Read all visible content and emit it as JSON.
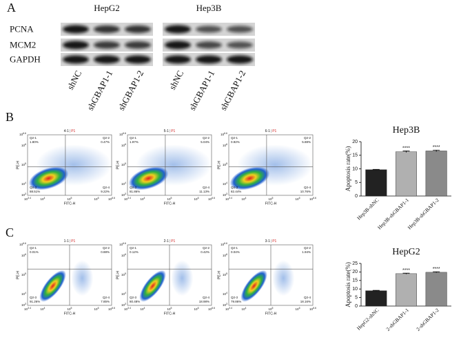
{
  "panel_a": {
    "label": "A",
    "proteins": [
      "PCNA",
      "MCM2",
      "GAPDH"
    ],
    "blots": [
      {
        "title": "HepG2",
        "lanes": [
          "shNC",
          "shGBAP1-1",
          "shGBAP1-2"
        ]
      },
      {
        "title": "Hep3B",
        "lanes": [
          "shNC",
          "shGBAP1-1",
          "shGBAP1-2"
        ]
      }
    ]
  },
  "flow_axes": {
    "base": "10",
    "x_exponents": [
      "3.4",
      "4",
      "5",
      "6",
      "6.6"
    ],
    "y_exponents": [
      "3",
      "4",
      "5",
      "6",
      "6.6"
    ],
    "xlabel": "FITC-H",
    "ylabel": "PE-H"
  },
  "panel_b": {
    "label": "B",
    "plots": [
      {
        "title": "4-1",
        "gate": "P1",
        "quadrants": [
          [
            "Q2-1",
            "1.80%"
          ],
          [
            "Q2-2",
            "0.47%"
          ],
          [
            "Q2-3",
            "88.51%"
          ],
          [
            "Q2-4",
            "9.22%"
          ]
        ]
      },
      {
        "title": "5-1",
        "gate": "P1",
        "quadrants": [
          [
            "Q2-1",
            "1.97%"
          ],
          [
            "Q2-2",
            "5.04%"
          ],
          [
            "Q2-3",
            "81.86%"
          ],
          [
            "Q2-4",
            "11.13%"
          ]
        ]
      },
      {
        "title": "6-1",
        "gate": "P1",
        "quadrants": [
          [
            "Q2-1",
            "0.92%"
          ],
          [
            "Q2-2",
            "5.88%"
          ],
          [
            "Q2-3",
            "82.44%"
          ],
          [
            "Q2-4",
            "10.76%"
          ]
        ]
      }
    ]
  },
  "panel_c": {
    "label": "C",
    "plots": [
      {
        "title": "1-1",
        "gate": "P1",
        "quadrants": [
          [
            "Q2-1",
            "0.01%"
          ],
          [
            "Q2-2",
            "0.88%"
          ],
          [
            "Q2-3",
            "91.26%"
          ],
          [
            "Q2-4",
            "7.85%"
          ]
        ]
      },
      {
        "title": "2-1",
        "gate": "P1",
        "quadrants": [
          [
            "Q2-1",
            "0.12%"
          ],
          [
            "Q2-2",
            "0.42%"
          ],
          [
            "Q2-3",
            "80.48%"
          ],
          [
            "Q2-4",
            "18.98%"
          ]
        ]
      },
      {
        "title": "3-1",
        "gate": "P1",
        "quadrants": [
          [
            "Q2-1",
            "0.04%"
          ],
          [
            "Q2-2",
            "1.94%"
          ],
          [
            "Q2-3",
            "79.86%"
          ],
          [
            "Q2-4",
            "18.16%"
          ]
        ]
      }
    ]
  },
  "chart_data": [
    {
      "type": "bar",
      "title": "Hep3B",
      "ylabel": "Apoptosis rate(%)",
      "categories": [
        "Hep3B-shNC",
        "Hep3B-shGBAP1-1",
        "Hep3B-shGBAP1-2"
      ],
      "values": [
        9.7,
        16.3,
        16.6
      ],
      "errors": [
        0.1,
        0.3,
        0.3
      ],
      "colors": [
        "#222222",
        "#b0b0b0",
        "#8a8a8a"
      ],
      "significance": [
        null,
        "****",
        "****"
      ],
      "ylim": [
        0,
        20
      ],
      "yticks": [
        0,
        5,
        10,
        15,
        20
      ]
    },
    {
      "type": "bar",
      "title": "HepG2",
      "ylabel": "Apoptosis rate(%)",
      "categories": [
        "HepG2-shNC",
        "2-shGBAP1-1",
        "2-shGBAP1-2"
      ],
      "values": [
        9,
        19,
        19.8
      ],
      "errors": [
        0.2,
        0.3,
        0.3
      ],
      "colors": [
        "#222222",
        "#b0b0b0",
        "#8a8a8a"
      ],
      "significance": [
        null,
        "****",
        "****"
      ],
      "ylim": [
        0,
        25
      ],
      "yticks": [
        0,
        5,
        10,
        15,
        20,
        25
      ]
    }
  ]
}
